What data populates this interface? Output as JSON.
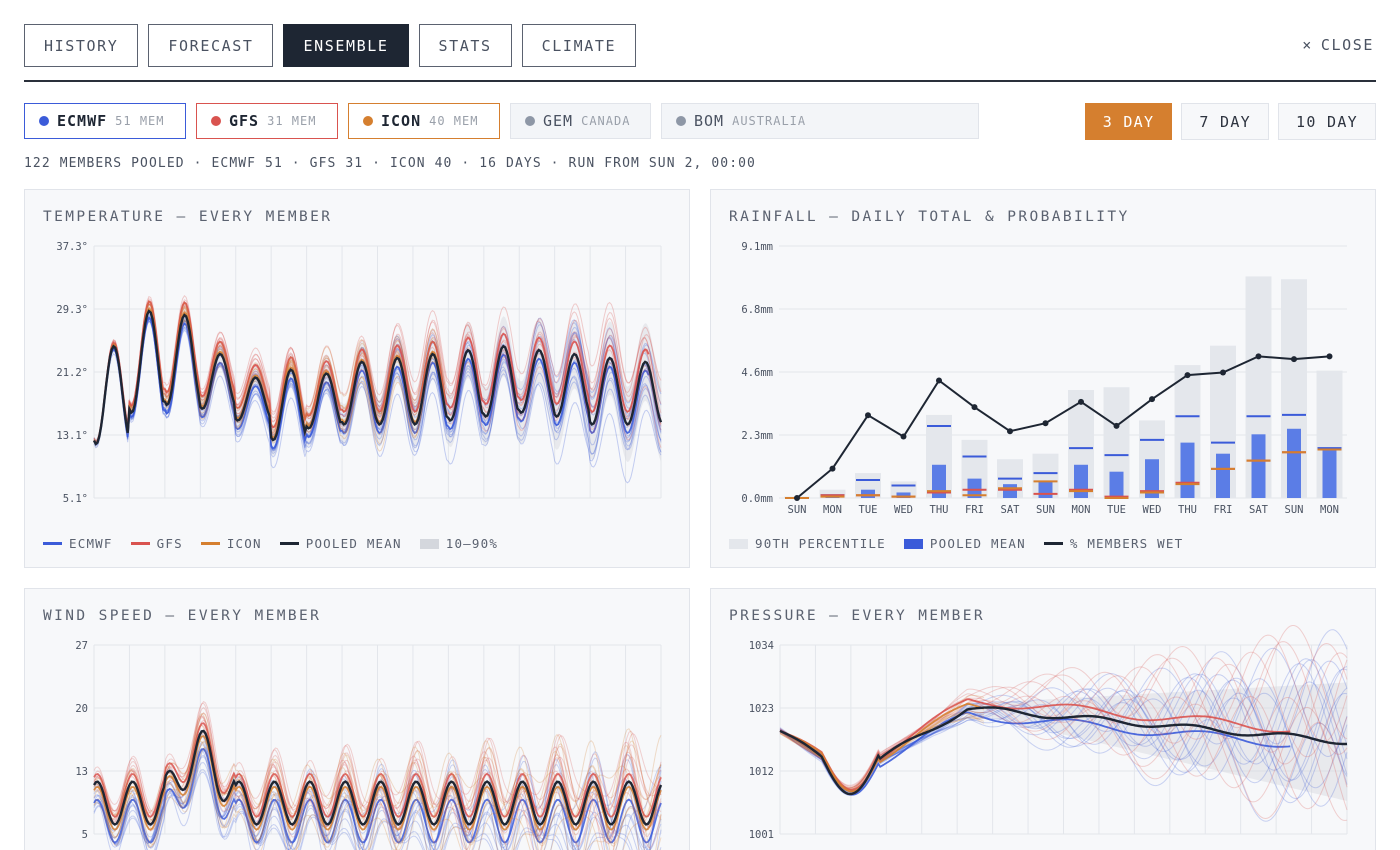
{
  "nav": {
    "tabs": [
      {
        "label": "HISTORY",
        "active": false
      },
      {
        "label": "FORECAST",
        "active": false
      },
      {
        "label": "ENSEMBLE",
        "active": true
      },
      {
        "label": "STATS",
        "active": false
      },
      {
        "label": "CLIMATE",
        "active": false
      }
    ],
    "close_label": "CLOSE",
    "close_icon": "×"
  },
  "models": [
    {
      "name": "ECMWF",
      "sub": "51 MEM",
      "color": "#3b5bd9",
      "active": true
    },
    {
      "name": "GFS",
      "sub": "31 MEM",
      "color": "#d9534f",
      "active": true
    },
    {
      "name": "ICON",
      "sub": "40 MEM",
      "color": "#d57f2f",
      "active": true
    },
    {
      "name": "GEM",
      "sub": "CANADA",
      "color": "#8e97a6",
      "active": false
    },
    {
      "name": "BOM",
      "sub": "AUSTRALIA",
      "color": "#8e97a6",
      "active": false
    }
  ],
  "ranges": [
    {
      "label": "3 DAY",
      "active": true
    },
    {
      "label": "7 DAY",
      "active": false
    },
    {
      "label": "10 DAY",
      "active": false
    }
  ],
  "summary": "122 MEMBERS POOLED · ECMWF 51 · GFS 31 · ICON 40 · 16 DAYS · RUN FROM SUN 2, 00:00",
  "colors": {
    "ecmwf": "#3b5bd9",
    "gfs": "#d9534f",
    "icon": "#d57f2f",
    "mean": "#1e2633",
    "band": "#d4d7dd",
    "accent": "#d57f2f"
  },
  "panels": {
    "temperature": {
      "title": "TEMPERATURE — EVERY MEMBER",
      "legend": [
        "ECMWF",
        "GFS",
        "ICON",
        "POOLED MEAN",
        "10–90%"
      ]
    },
    "rainfall": {
      "title": "RAINFALL — DAILY TOTAL & PROBABILITY",
      "legend": [
        "90TH PERCENTILE",
        "POOLED MEAN",
        "% MEMBERS WET"
      ]
    },
    "wind": {
      "title": "WIND SPEED — EVERY MEMBER"
    },
    "pressure": {
      "title": "PRESSURE — EVERY MEMBER"
    }
  },
  "chart_data": [
    {
      "id": "temperature",
      "type": "line",
      "title": "TEMPERATURE — EVERY MEMBER",
      "y_ticks": [
        "37.3°",
        "29.3°",
        "21.2°",
        "13.1°",
        "5.1°"
      ],
      "ylim": [
        5.1,
        37.3
      ],
      "days": 16,
      "series_summary": {
        "pooled_mean_daily_max": [
          24.5,
          29.0,
          28.5,
          23.5,
          20.5,
          21.5,
          21.0,
          22.5,
          23.0,
          23.5,
          24.0,
          24.5,
          24.0,
          23.5,
          23.0,
          22.5
        ],
        "pooled_mean_daily_min": [
          12.0,
          16.0,
          17.0,
          16.5,
          15.0,
          12.5,
          14.0,
          14.5,
          14.5,
          14.5,
          15.0,
          15.5,
          16.0,
          15.5,
          14.5,
          14.5
        ]
      },
      "legend": [
        "ECMWF",
        "GFS",
        "ICON",
        "POOLED MEAN",
        "10–90%"
      ]
    },
    {
      "id": "rainfall",
      "type": "bar",
      "title": "RAINFALL — DAILY TOTAL & PROBABILITY",
      "categories": [
        "SUN",
        "MON",
        "TUE",
        "WED",
        "THU",
        "FRI",
        "SAT",
        "SUN",
        "MON",
        "TUE",
        "WED",
        "THU",
        "FRI",
        "SAT",
        "SUN",
        "MON"
      ],
      "y_ticks": [
        "9.1mm",
        "6.8mm",
        "4.6mm",
        "2.3mm",
        "0.0mm"
      ],
      "ylim": [
        0,
        9.1
      ],
      "series": [
        {
          "name": "90TH PERCENTILE",
          "values": [
            0.05,
            0.3,
            0.9,
            0.6,
            3.0,
            2.1,
            1.4,
            1.6,
            3.9,
            4.0,
            2.8,
            4.8,
            5.5,
            8.0,
            7.9,
            4.6
          ]
        },
        {
          "name": "POOLED MEAN",
          "values": [
            0.0,
            0.1,
            0.3,
            0.2,
            1.2,
            0.7,
            0.5,
            0.6,
            1.2,
            0.95,
            1.4,
            2.0,
            1.6,
            2.3,
            2.5,
            1.8
          ]
        },
        {
          "name": "ECMWF",
          "values": [
            0.0,
            0.1,
            0.65,
            0.45,
            2.6,
            1.5,
            0.7,
            0.9,
            1.8,
            1.55,
            2.1,
            2.95,
            2.0,
            2.95,
            3.0,
            1.8
          ]
        },
        {
          "name": "GFS",
          "values": [
            0.0,
            0.1,
            0.1,
            0.05,
            0.2,
            0.3,
            0.3,
            0.15,
            0.3,
            0.05,
            0.25,
            0.55,
            1.05,
            1.35,
            1.65,
            1.75
          ]
        },
        {
          "name": "ICON",
          "values": [
            0.0,
            0.05,
            0.1,
            0.05,
            0.25,
            0.1,
            0.35,
            0.6,
            0.25,
            0.0,
            0.2,
            0.5,
            1.05,
            1.35,
            1.65,
            1.75
          ]
        },
        {
          "name": "% MEMBERS WET",
          "axis": "right",
          "values": [
            0,
            11,
            31,
            23,
            44,
            34,
            25,
            28,
            36,
            27,
            37,
            46,
            47,
            53,
            52,
            53
          ]
        }
      ],
      "legend": [
        "90TH PERCENTILE",
        "POOLED MEAN",
        "% MEMBERS WET"
      ]
    },
    {
      "id": "wind",
      "type": "line",
      "title": "WIND SPEED — EVERY MEMBER",
      "y_ticks": [
        "27",
        "20",
        "13",
        "5"
      ],
      "ylim": [
        5,
        27
      ]
    },
    {
      "id": "pressure",
      "type": "line",
      "title": "PRESSURE — EVERY MEMBER",
      "y_ticks": [
        "1034",
        "1023",
        "1012",
        "1001"
      ],
      "ylim": [
        1001,
        1034
      ]
    }
  ]
}
